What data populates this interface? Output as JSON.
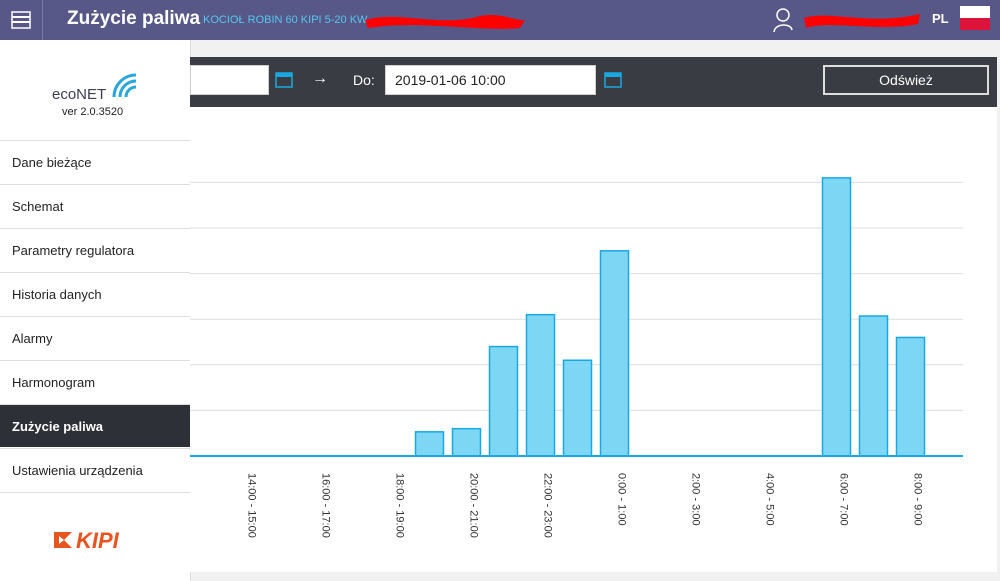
{
  "header": {
    "title": "Zużycie paliwa",
    "device": "KOCIOŁ ROBIN 60 KIPI 5-20 KW",
    "lang": "PL"
  },
  "sidebar": {
    "logo_text": "ecoNET",
    "version": "ver 2.0.3520",
    "brand": "KIPI",
    "menu": [
      "Dane bieżące",
      "Schemat",
      "Parametry regulatora",
      "Historia danych",
      "Alarmy",
      "Harmonogram",
      "Zużycie paliwa",
      "Ustawienia urządzenia"
    ],
    "active_menu": 6
  },
  "toolbar": {
    "arrow": "→",
    "to_label": "Do:",
    "to_value": "2019-01-06 10:00",
    "refresh": "Odśwież"
  },
  "chart_data": {
    "type": "bar",
    "categories": [
      null,
      "14:00 - 15:00",
      null,
      "16:00 - 17:00",
      null,
      "18:00 - 19:00",
      null,
      "20:00 - 21:00",
      null,
      "22:00 - 23:00",
      null,
      "0:00 - 1:00",
      null,
      "2:00 - 3:00",
      null,
      "4:00 - 5:00",
      null,
      "6:00 - 7:00",
      null,
      "8:00 - 9:00",
      null
    ],
    "values": [
      0,
      0,
      0,
      0,
      0,
      0,
      0.53,
      0.6,
      2.4,
      3.1,
      2.1,
      4.5,
      0,
      0,
      0,
      0,
      0,
      6.1,
      3.07,
      2.6,
      0
    ],
    "color": "#7dd6f4",
    "edge_color": "#1aa8e0",
    "ylim": [
      0,
      7
    ],
    "yticks": [
      0,
      1,
      2,
      3,
      4,
      5,
      6
    ],
    "grid": true
  }
}
